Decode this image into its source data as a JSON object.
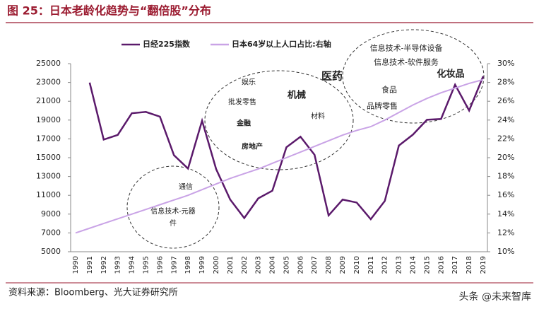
{
  "chart_data": {
    "type": "line",
    "title": "图 25：日本老龄化趋势与“翻倍股”分布",
    "source": "资料来源：Bloomberg、光大证券研究所",
    "watermark": "头条 @未来智库",
    "categories": [
      "1990",
      "1991",
      "1992",
      "1993",
      "1994",
      "1995",
      "1996",
      "1997",
      "1998",
      "1999",
      "2000",
      "2001",
      "2002",
      "2003",
      "2004",
      "2005",
      "2006",
      "2007",
      "2008",
      "2009",
      "2010",
      "2011",
      "2012",
      "2013",
      "2014",
      "2015",
      "2016",
      "2017",
      "2018",
      "2019"
    ],
    "series": [
      {
        "name": "日经225指数",
        "color": "#5b1a6b",
        "values": [
          null,
          22984,
          16925,
          17417,
          19723,
          19868,
          19361,
          15259,
          13842,
          18934,
          13786,
          10543,
          8579,
          10677,
          11489,
          16111,
          17226,
          15308,
          8860,
          10546,
          10229,
          8455,
          10395,
          16291,
          17451,
          19034,
          19114,
          22765,
          20015,
          23657
        ]
      },
      {
        "name": "日本64岁以上人口占比:右轴",
        "color": "#c9a3e6",
        "axis": "y2",
        "values": [
          12.0,
          12.5,
          13.0,
          13.5,
          14.0,
          14.5,
          15.0,
          15.5,
          16.0,
          16.6,
          17.2,
          17.8,
          18.3,
          18.8,
          19.4,
          20.0,
          20.6,
          21.2,
          21.8,
          22.4,
          22.9,
          23.3,
          24.0,
          24.8,
          25.6,
          26.3,
          26.9,
          27.4,
          27.9,
          28.3
        ]
      }
    ],
    "ylim": [
      5000,
      25000
    ],
    "yticks": [
      5000,
      7000,
      9000,
      11000,
      13000,
      15000,
      17000,
      19000,
      21000,
      23000,
      25000
    ],
    "y2lim": [
      10,
      30
    ],
    "y2ticks": [
      {
        "value": 10,
        "label": "10%"
      },
      {
        "value": 12,
        "label": "12%"
      },
      {
        "value": 14,
        "label": "14%"
      },
      {
        "value": 16,
        "label": "16%"
      },
      {
        "value": 18,
        "label": "18%"
      },
      {
        "value": 20,
        "label": "20%"
      },
      {
        "value": 22,
        "label": "22%"
      },
      {
        "value": 24,
        "label": "24%"
      },
      {
        "value": 26,
        "label": "26%"
      },
      {
        "value": 28,
        "label": "28%"
      },
      {
        "value": 30,
        "label": "30%"
      }
    ],
    "annotations": [
      "娱乐",
      "批发零售",
      "机械",
      "医药",
      "材料",
      "金融",
      "房地产",
      "信息技术-半导体设备",
      "信息技术-软件服务",
      "化妆品",
      "食品",
      "品牌零售",
      "通信",
      "信息技术-元器件"
    ]
  }
}
